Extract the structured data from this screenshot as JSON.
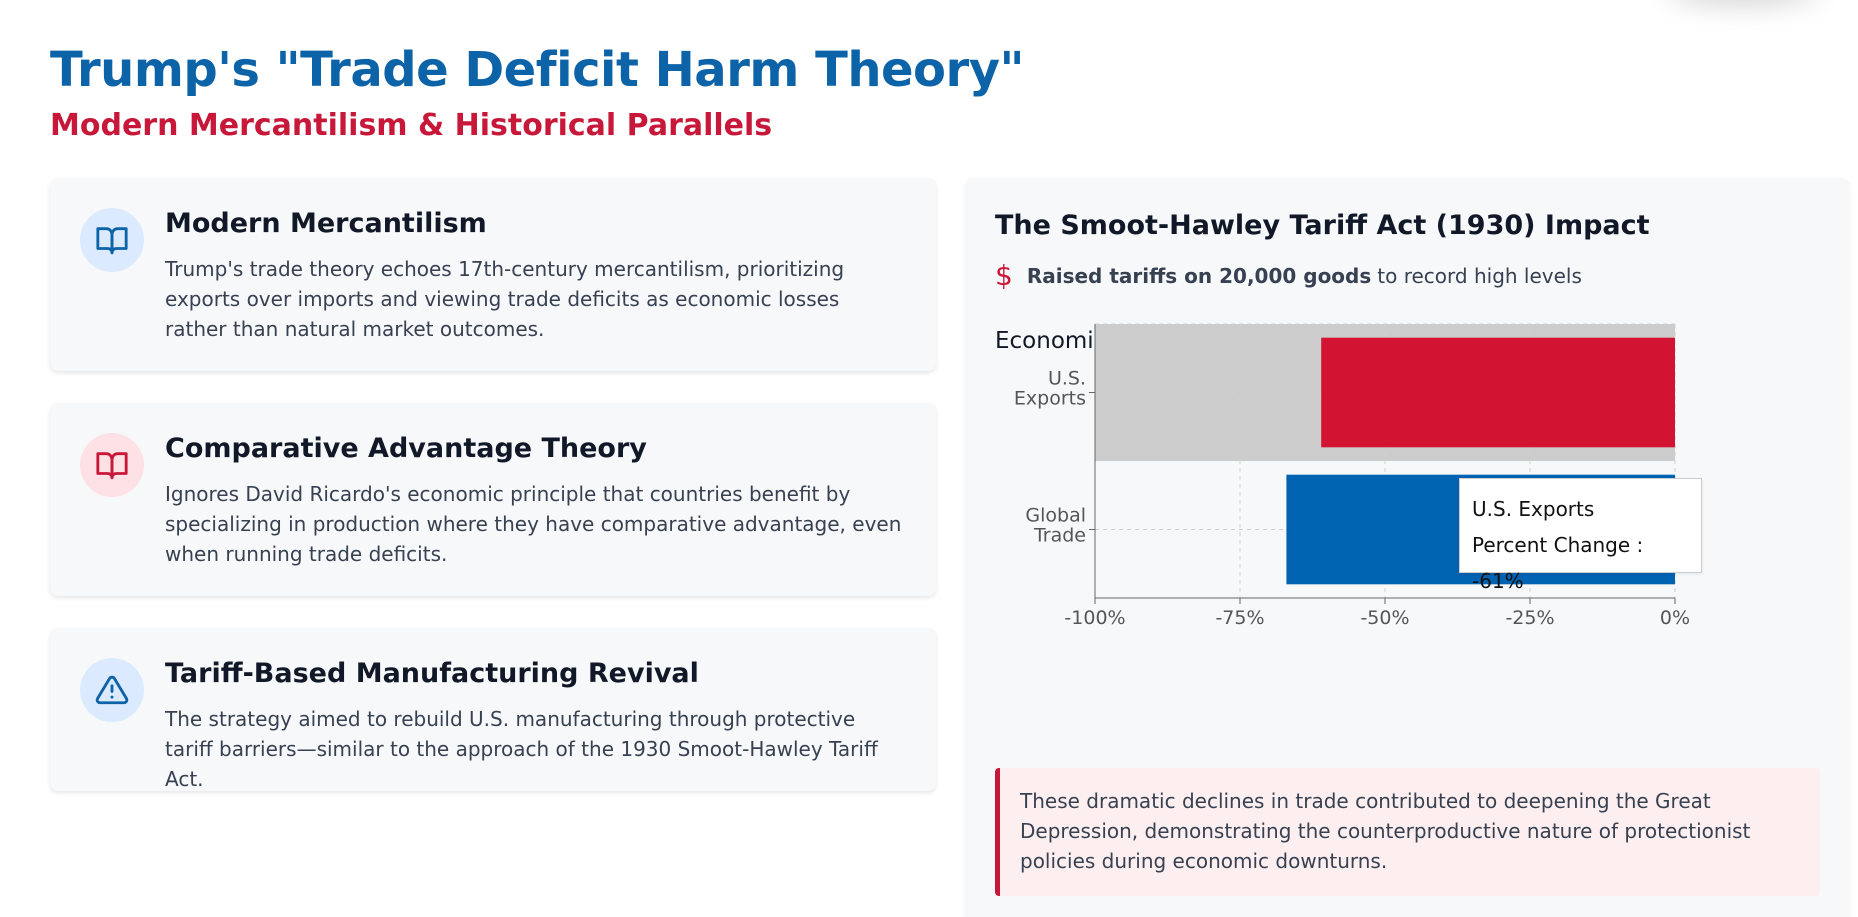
{
  "header": {
    "title": "Trump's \"Trade Deficit Harm Theory\"",
    "subtitle": "Modern Mercantilism & Historical Parallels"
  },
  "cards": [
    {
      "icon": "book-icon",
      "title": "Modern Mercantilism",
      "text": "Trump's trade theory echoes 17th-century mercantilism, prioritizing exports over imports and viewing trade deficits as economic losses rather than natural market outcomes."
    },
    {
      "icon": "book-icon",
      "title": "Comparative Advantage Theory",
      "text": "Ignores David Ricardo's economic principle that countries benefit by specializing in production where they have comparative advantage, even when running trade deficits."
    },
    {
      "icon": "warning-icon",
      "title": "Tariff-Based Manufacturing Revival",
      "text": "The strategy aimed to rebuild U.S. manufacturing through protective tariff barriers—similar to the approach of the 1930 Smoot-Hawley Tariff Act."
    }
  ],
  "panel": {
    "title": "The Smoot-Hawley Tariff Act (1930) Impact",
    "fact_bold": "Raised tariffs on 20,000 goods",
    "fact_rest": "to record high levels",
    "fact_icon": "dollar-icon",
    "consequences_label": "Economic Consequences:",
    "note": "These dramatic declines in trade contributed to deepening the Great Depression, demonstrating the counterproductive nature of protectionist policies during economic downturns."
  },
  "tooltip": {
    "category": "U.S. Exports",
    "text": "Percent Change : -61%"
  },
  "colors": {
    "title_blue": "#0d63a8",
    "accent_red": "#c8183a",
    "bar_exports": "#d31332",
    "bar_global": "#0063b1",
    "hover_band": "#cccccc"
  },
  "chart_data": {
    "type": "bar",
    "orientation": "horizontal",
    "categories": [
      "U.S. Exports",
      "Global Trade"
    ],
    "category_tick_labels": [
      [
        "U.S.",
        "Exports"
      ],
      [
        "Global",
        "Trade"
      ]
    ],
    "values": [
      -61,
      -67
    ],
    "xlim": [
      -100,
      0
    ],
    "xticks": [
      -100,
      -75,
      -50,
      -25,
      0
    ],
    "xtick_labels": [
      "-100%",
      "-75%",
      "-50%",
      "-25%",
      "0%"
    ],
    "grid": true,
    "highlighted_category": "U.S. Exports",
    "series": [
      {
        "name": "Percent Change",
        "values": [
          -61,
          -67
        ]
      }
    ]
  }
}
